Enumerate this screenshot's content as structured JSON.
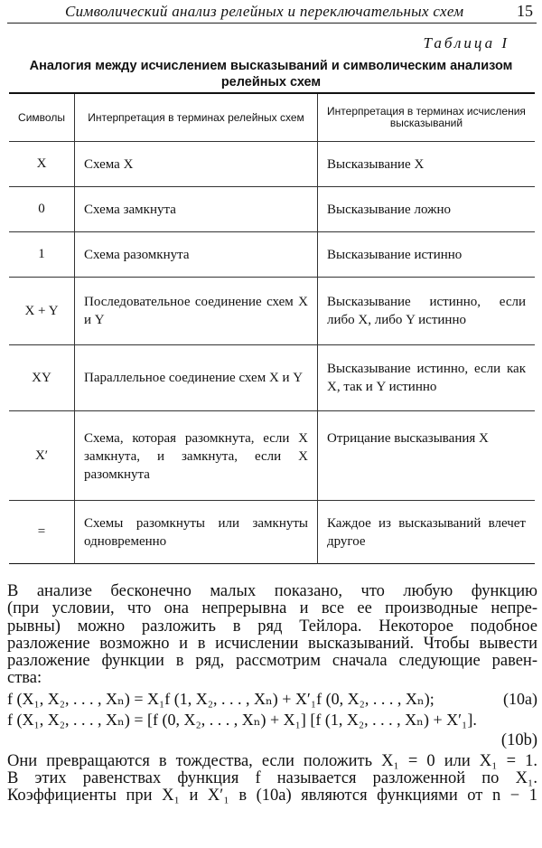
{
  "header": {
    "running_title": "Символический анализ релейных и переключательных схем",
    "page_number": "15"
  },
  "table": {
    "label": "Таблица I",
    "title_line1": "Аналогия между исчислением высказываний и символическим анализом",
    "title_line2": "релейных схем",
    "columns": [
      "Символы",
      "Интерпретация в терминах релейных схем",
      "Интерпретация в терминах исчисления высказываний"
    ],
    "rows": [
      {
        "symbol": "X",
        "circuit": "Схема X",
        "proposition": "Высказывание X"
      },
      {
        "symbol": "0",
        "circuit": "Схема замкнута",
        "proposition": "Высказывание ложно"
      },
      {
        "symbol": "1",
        "circuit": "Схема разомкнута",
        "proposition": "Высказывание истинно"
      },
      {
        "symbol": "X + Y",
        "circuit": "Последовательное соединение схем X и Y",
        "proposition": "Высказывание истинно, если либо X, либо Y истинно"
      },
      {
        "symbol": "XY",
        "circuit": "Параллельное соединение схем X и Y",
        "proposition": "Высказывание истинно, если как X, так и Y истинно"
      },
      {
        "symbol": "X′",
        "circuit": "Схема, которая разомкнута, если X замкнута, и замкнута, если X разомкнута",
        "proposition": "Отрицание высказывания X"
      },
      {
        "symbol": "=",
        "circuit": "Схемы разомкнуты или замкнуты одновременно",
        "proposition": "Каждое из высказываний влечет другое"
      }
    ]
  },
  "body": {
    "paragraph1": [
      "В анализе бесконечно малых показано, что любую функцию",
      "(при условии, что она непрерывна и все ее производные непре-",
      "рывны) можно разложить в ряд Тейлора. Некоторое подобное",
      "разложение возможно и в исчислении высказываний. Чтобы вывести",
      "разложение функции в ряд, рассмотрим сначала следующие равен-",
      "ства:"
    ],
    "eq10a": "f (X₁, X₂, . . . , Xₙ) = X₁f (1, X₂, . . . , Xₙ) + X′₁f (0, X₂, . . . , Xₙ);",
    "eq10a_no": "(10a)",
    "eq10b": "f (X₁, X₂, . . . , Xₙ) = [f (0, X₂, . . . , Xₙ) + X₁] [f (1, X₂, . . . , Xₙ) + X′₁].",
    "eq10b_no": "(10b)",
    "paragraph2": [
      "Они превращаются в тождества, если положить X₁ = 0 или X₁ = 1.",
      "В этих равенствах функция f называется разложенной по X₁.",
      "Коэффициенты при X₁ и X′₁ в (10a) являются функциями от n − 1"
    ]
  }
}
